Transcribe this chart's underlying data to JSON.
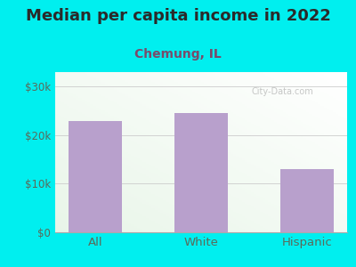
{
  "title": "Median per capita income in 2022",
  "subtitle": "Chemung, IL",
  "categories": [
    "All",
    "White",
    "Hispanic"
  ],
  "values": [
    23000,
    24500,
    13000
  ],
  "bar_color": "#b8a0cc",
  "background_color": "#00efef",
  "plot_bg_color_topleft": "#e8f5e8",
  "plot_bg_color_white": "#ffffff",
  "title_color": "#2a2a2a",
  "subtitle_color": "#7a4a6a",
  "tick_color": "#5a6a5a",
  "yticks": [
    0,
    10000,
    20000,
    30000
  ],
  "ytick_labels": [
    "$0",
    "$10k",
    "$20k",
    "$30k"
  ],
  "ylim": [
    0,
    33000
  ],
  "watermark": "City-Data.com",
  "title_fontsize": 13,
  "subtitle_fontsize": 10,
  "tick_fontsize": 8.5,
  "xlabel_fontsize": 9.5
}
